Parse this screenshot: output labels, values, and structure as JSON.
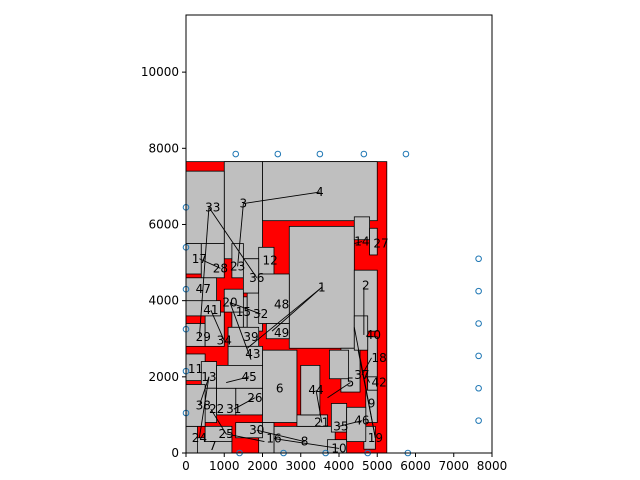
{
  "chart_data": {
    "type": "scatter",
    "title": "",
    "xlabel": "",
    "ylabel": "",
    "xlim": [
      0,
      8000
    ],
    "ylim": [
      0,
      11500
    ],
    "xticks": [
      0,
      1000,
      2000,
      3000,
      4000,
      5000,
      6000,
      7000,
      8000
    ],
    "yticks": [
      0,
      2000,
      4000,
      6000,
      8000,
      10000
    ],
    "xtick_labels": [
      "0",
      "1000",
      "2000",
      "3000",
      "4000",
      "5000",
      "6000",
      "7000",
      "8000"
    ],
    "ytick_labels": [
      "0",
      "2000",
      "4000",
      "6000",
      "8000",
      "10000"
    ],
    "grid": false,
    "colors": {
      "region": "#ff0000",
      "block": "#bfbfbf",
      "edge": "#000000",
      "pin": "#1f77b4"
    },
    "region": {
      "x": [
        0,
        5250
      ],
      "y": [
        0,
        7650
      ]
    },
    "blocks": [
      {
        "id": "1",
        "x": [
          2700,
          4400
        ],
        "y": [
          2750,
          5950
        ]
      },
      {
        "id": "2",
        "x": [
          4400,
          5000
        ],
        "y": [
          3200,
          4800
        ]
      },
      {
        "id": "3",
        "x": [
          1000,
          2000
        ],
        "y": [
          5100,
          7650
        ]
      },
      {
        "id": "4",
        "x": [
          2000,
          5000
        ],
        "y": [
          6100,
          7650
        ]
      },
      {
        "id": "5",
        "x": [
          4050,
          4550
        ],
        "y": [
          1600,
          2750
        ]
      },
      {
        "id": "6",
        "x": [
          2000,
          2900
        ],
        "y": [
          800,
          2700
        ]
      },
      {
        "id": "7",
        "x": [
          200,
          1200
        ],
        "y": [
          0,
          400
        ]
      },
      {
        "id": "8",
        "x": [
          2300,
          3900
        ],
        "y": [
          0,
          700
        ]
      },
      {
        "id": "9",
        "x": [
          4700,
          5000
        ],
        "y": [
          800,
          1650
        ]
      },
      {
        "id": "10",
        "x": [
          3700,
          4200
        ],
        "y": [
          0,
          350
        ]
      },
      {
        "id": "11",
        "x": [
          0,
          500
        ],
        "y": [
          1900,
          2600
        ]
      },
      {
        "id": "12",
        "x": [
          1900,
          2300
        ],
        "y": [
          4650,
          5400
        ]
      },
      {
        "id": "13",
        "x": [
          400,
          800
        ],
        "y": [
          1700,
          2400
        ]
      },
      {
        "id": "14",
        "x": [
          4400,
          4800
        ],
        "y": [
          5600,
          6200
        ]
      },
      {
        "id": "15",
        "x": [
          1200,
          1600
        ],
        "y": [
          3300,
          4100
        ]
      },
      {
        "id": "16",
        "x": [
          1900,
          2300
        ],
        "y": [
          0,
          800
        ]
      },
      {
        "id": "17",
        "x": [
          0,
          400
        ],
        "y": [
          4700,
          5500
        ]
      },
      {
        "id": "18",
        "x": [
          4750,
          5000
        ],
        "y": [
          1750,
          3050
        ]
      },
      {
        "id": "19",
        "x": [
          4650,
          4950
        ],
        "y": [
          100,
          700
        ]
      },
      {
        "id": "20",
        "x": [
          1000,
          1500
        ],
        "y": [
          3700,
          4300
        ]
      },
      {
        "id": "21",
        "x": [
          2900,
          3700
        ],
        "y": [
          700,
          1000
        ]
      },
      {
        "id": "22",
        "x": [
          500,
          800
        ],
        "y": [
          800,
          1700
        ]
      },
      {
        "id": "23",
        "x": [
          1200,
          1500
        ],
        "y": [
          4600,
          5500
        ]
      },
      {
        "id": "24",
        "x": [
          0,
          300
        ],
        "y": [
          0,
          700
        ]
      },
      {
        "id": "25",
        "x": [
          500,
          1200
        ],
        "y": [
          300,
          700
        ]
      },
      {
        "id": "26",
        "x": [
          1300,
          2000
        ],
        "y": [
          1000,
          1700
        ]
      },
      {
        "id": "27",
        "x": [
          4800,
          5000
        ],
        "y": [
          5200,
          5900
        ]
      },
      {
        "id": "28",
        "x": [
          400,
          1000
        ],
        "y": [
          4600,
          5500
        ]
      },
      {
        "id": "29",
        "x": [
          0,
          500
        ],
        "y": [
          2800,
          3400
        ]
      },
      {
        "id": "30",
        "x": [
          1300,
          2000
        ],
        "y": [
          400,
          800
        ]
      },
      {
        "id": "31",
        "x": [
          800,
          1300
        ],
        "y": [
          1000,
          1700
        ]
      },
      {
        "id": "32",
        "x": [
          1600,
          2000
        ],
        "y": [
          3200,
          4200
        ]
      },
      {
        "id": "33",
        "x": [
          0,
          1000
        ],
        "y": [
          5500,
          7400
        ]
      },
      {
        "id": "34",
        "x": [
          500,
          1000
        ],
        "y": [
          2800,
          3700
        ]
      },
      {
        "id": "35",
        "x": [
          3800,
          4200
        ],
        "y": [
          550,
          1300
        ]
      },
      {
        "id": "36",
        "x": [
          1500,
          1900
        ],
        "y": [
          4200,
          5100
        ]
      },
      {
        "id": "37",
        "x": [
          3750,
          4250
        ],
        "y": [
          1950,
          2700
        ]
      },
      {
        "id": "38",
        "x": [
          0,
          500
        ],
        "y": [
          700,
          1800
        ]
      },
      {
        "id": "39",
        "x": [
          1100,
          1900
        ],
        "y": [
          2800,
          3300
        ]
      },
      {
        "id": "40",
        "x": [
          4400,
          4750
        ],
        "y": [
          2700,
          3600
        ]
      },
      {
        "id": "41",
        "x": [
          0,
          900
        ],
        "y": [
          3600,
          4000
        ]
      },
      {
        "id": "42",
        "x": [
          4750,
          5000
        ],
        "y": [
          1650,
          2000
        ]
      },
      {
        "id": "43",
        "x": [
          1100,
          2000
        ],
        "y": [
          2300,
          2800
        ]
      },
      {
        "id": "44",
        "x": [
          3000,
          3500
        ],
        "y": [
          1000,
          2300
        ]
      },
      {
        "id": "45",
        "x": [
          800,
          2000
        ],
        "y": [
          1700,
          2300
        ]
      },
      {
        "id": "46",
        "x": [
          4200,
          4700
        ],
        "y": [
          300,
          1200
        ]
      },
      {
        "id": "47",
        "x": [
          0,
          800
        ],
        "y": [
          4000,
          4600
        ]
      },
      {
        "id": "48",
        "x": [
          1900,
          2700
        ],
        "y": [
          3400,
          4700
        ]
      },
      {
        "id": "49",
        "x": [
          2100,
          2700
        ],
        "y": [
          3000,
          3400
        ]
      }
    ],
    "block_labels": [
      {
        "id": "1",
        "label": "1",
        "x": 3550,
        "y": 4350
      },
      {
        "id": "2",
        "label": "2",
        "x": 4700,
        "y": 4400
      },
      {
        "id": "3",
        "label": "3",
        "x": 1500,
        "y": 6550
      },
      {
        "id": "4",
        "label": "4",
        "x": 3500,
        "y": 6850
      },
      {
        "id": "5",
        "label": "5",
        "x": 4300,
        "y": 1850
      },
      {
        "id": "6",
        "label": "6",
        "x": 2450,
        "y": 1700
      },
      {
        "id": "7",
        "label": "7",
        "x": 700,
        "y": 180
      },
      {
        "id": "8",
        "label": "8",
        "x": 3100,
        "y": 300
      },
      {
        "id": "9",
        "label": "9",
        "x": 4850,
        "y": 1300
      },
      {
        "id": "10",
        "label": "10",
        "x": 4000,
        "y": 120
      },
      {
        "id": "11",
        "label": "11",
        "x": 250,
        "y": 2200
      },
      {
        "id": "12",
        "label": "12",
        "x": 2200,
        "y": 5050
      },
      {
        "id": "13",
        "label": "13",
        "x": 600,
        "y": 2000
      },
      {
        "id": "14",
        "label": "14",
        "x": 4600,
        "y": 5550
      },
      {
        "id": "15",
        "label": "15",
        "x": 1500,
        "y": 3700
      },
      {
        "id": "16",
        "label": "16",
        "x": 2300,
        "y": 380
      },
      {
        "id": "17",
        "label": "17",
        "x": 350,
        "y": 5100
      },
      {
        "id": "18",
        "label": "18",
        "x": 5050,
        "y": 2500
      },
      {
        "id": "19",
        "label": "19",
        "x": 4950,
        "y": 400
      },
      {
        "id": "20",
        "label": "20",
        "x": 1150,
        "y": 3950
      },
      {
        "id": "21",
        "label": "21",
        "x": 3550,
        "y": 800
      },
      {
        "id": "22",
        "label": "22",
        "x": 800,
        "y": 1150
      },
      {
        "id": "23",
        "label": "23",
        "x": 1350,
        "y": 4900
      },
      {
        "id": "24",
        "label": "24",
        "x": 350,
        "y": 400
      },
      {
        "id": "25",
        "label": "25",
        "x": 1050,
        "y": 500
      },
      {
        "id": "26",
        "label": "26",
        "x": 1800,
        "y": 1450
      },
      {
        "id": "27",
        "label": "27",
        "x": 5100,
        "y": 5500
      },
      {
        "id": "28",
        "label": "28",
        "x": 900,
        "y": 4850
      },
      {
        "id": "29",
        "label": "29",
        "x": 450,
        "y": 3050
      },
      {
        "id": "30",
        "label": "30",
        "x": 1850,
        "y": 600
      },
      {
        "id": "31",
        "label": "31",
        "x": 1250,
        "y": 1150
      },
      {
        "id": "32",
        "label": "32",
        "x": 1950,
        "y": 3650
      },
      {
        "id": "33",
        "label": "33",
        "x": 700,
        "y": 6450
      },
      {
        "id": "34",
        "label": "34",
        "x": 1000,
        "y": 2950
      },
      {
        "id": "35",
        "label": "35",
        "x": 4050,
        "y": 700
      },
      {
        "id": "36",
        "label": "36",
        "x": 1850,
        "y": 4600
      },
      {
        "id": "37",
        "label": "37",
        "x": 4600,
        "y": 2050
      },
      {
        "id": "38",
        "label": "38",
        "x": 450,
        "y": 1250
      },
      {
        "id": "39",
        "label": "39",
        "x": 1700,
        "y": 3050
      },
      {
        "id": "40",
        "label": "40",
        "x": 4900,
        "y": 3100
      },
      {
        "id": "41",
        "label": "41",
        "x": 650,
        "y": 3750
      },
      {
        "id": "42",
        "label": "42",
        "x": 5050,
        "y": 1850
      },
      {
        "id": "43",
        "label": "43",
        "x": 1750,
        "y": 2600
      },
      {
        "id": "44",
        "label": "44",
        "x": 3400,
        "y": 1650
      },
      {
        "id": "45",
        "label": "45",
        "x": 1650,
        "y": 2000
      },
      {
        "id": "46",
        "label": "46",
        "x": 4600,
        "y": 850
      },
      {
        "id": "47",
        "label": "47",
        "x": 450,
        "y": 4300
      },
      {
        "id": "48",
        "label": "48",
        "x": 2500,
        "y": 3900
      },
      {
        "id": "49",
        "label": "49",
        "x": 2500,
        "y": 3150
      }
    ],
    "connections": [
      [
        [
          3550,
          4350
        ],
        [
          2250,
          3200
        ]
      ],
      [
        [
          3550,
          4350
        ],
        [
          1600,
          2750
        ]
      ],
      [
        [
          1500,
          6550
        ],
        [
          1350,
          4900
        ]
      ],
      [
        [
          3500,
          6850
        ],
        [
          1500,
          6550
        ]
      ],
      [
        [
          4300,
          1850
        ],
        [
          3700,
          1450
        ]
      ],
      [
        [
          3100,
          300
        ],
        [
          1850,
          600
        ]
      ],
      [
        [
          4000,
          120
        ],
        [
          2300,
          380
        ]
      ],
      [
        [
          4950,
          400
        ],
        [
          4500,
          2700
        ]
      ],
      [
        [
          4950,
          400
        ],
        [
          4400,
          3300
        ]
      ],
      [
        [
          600,
          2000
        ],
        [
          350,
          1250
        ]
      ],
      [
        [
          600,
          2000
        ],
        [
          350,
          400
        ]
      ],
      [
        [
          600,
          6450
        ],
        [
          350,
          3050
        ]
      ],
      [
        [
          600,
          6450
        ],
        [
          1850,
          4600
        ]
      ],
      [
        [
          350,
          5100
        ],
        [
          900,
          4850
        ]
      ],
      [
        [
          4850,
          2500
        ],
        [
          4600,
          2050
        ]
      ],
      [
        [
          4650,
          4350
        ],
        [
          4650,
          3100
        ]
      ],
      [
        [
          1150,
          3950
        ],
        [
          1700,
          2450
        ]
      ],
      [
        [
          1150,
          3950
        ],
        [
          1950,
          3650
        ]
      ],
      [
        [
          1500,
          3700
        ],
        [
          1500,
          3300
        ]
      ],
      [
        [
          4600,
          5550
        ],
        [
          4400,
          5500
        ]
      ],
      [
        [
          3550,
          800
        ],
        [
          3400,
          1650
        ]
      ],
      [
        [
          1050,
          500
        ],
        [
          650,
          1150
        ]
      ],
      [
        [
          1050,
          500
        ],
        [
          2050,
          300
        ]
      ],
      [
        [
          1250,
          1150
        ],
        [
          1800,
          1450
        ]
      ],
      [
        [
          650,
          3750
        ],
        [
          1000,
          2950
        ]
      ],
      [
        [
          4600,
          850
        ],
        [
          4000,
          700
        ]
      ],
      [
        [
          1650,
          2000
        ],
        [
          1050,
          1850
        ]
      ],
      [
        [
          4700,
          2050
        ],
        [
          4800,
          1850
        ]
      ]
    ],
    "pins": [
      [
        1300,
        7850
      ],
      [
        2400,
        7850
      ],
      [
        3500,
        7850
      ],
      [
        4650,
        7850
      ],
      [
        5750,
        7850
      ],
      [
        0,
        6450
      ],
      [
        0,
        5400
      ],
      [
        0,
        4300
      ],
      [
        0,
        3250
      ],
      [
        0,
        2150
      ],
      [
        0,
        1050
      ],
      [
        7650,
        5100
      ],
      [
        7650,
        4250
      ],
      [
        7650,
        3400
      ],
      [
        7650,
        2550
      ],
      [
        7650,
        1700
      ],
      [
        7650,
        850
      ],
      [
        1400,
        0
      ],
      [
        2550,
        0
      ],
      [
        3650,
        0
      ],
      [
        4750,
        0
      ],
      [
        5800,
        0
      ]
    ]
  }
}
